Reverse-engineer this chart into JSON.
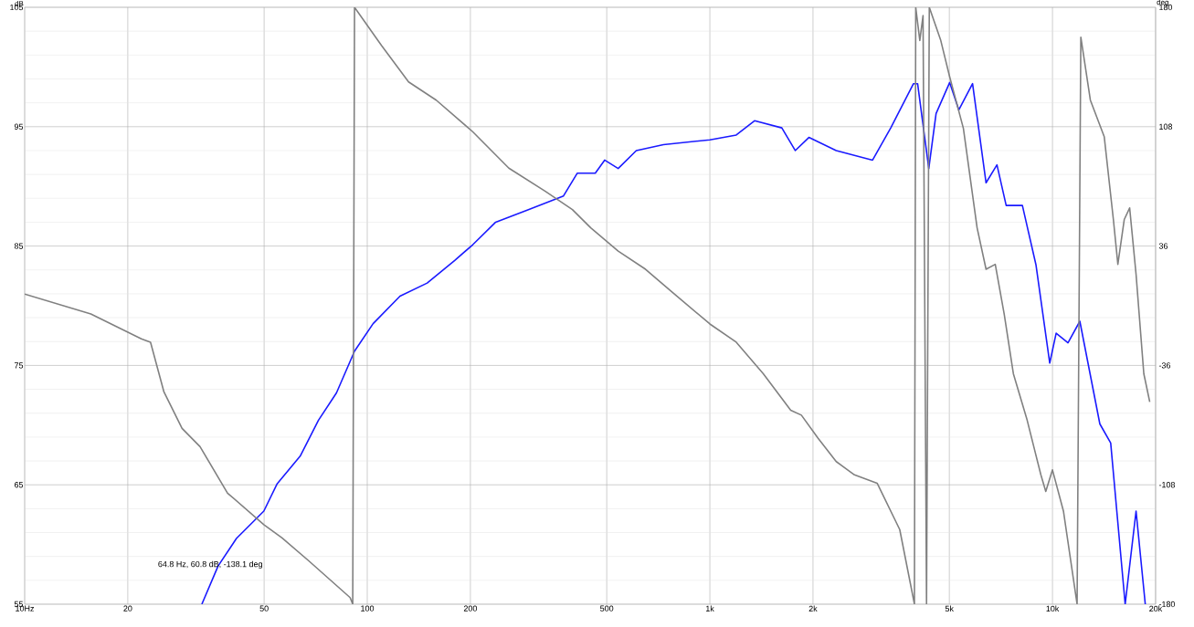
{
  "chart_data": {
    "type": "line",
    "log": "x",
    "grid": true,
    "ylabel": "dB",
    "y2label": "deg",
    "xlim": [
      10,
      20000
    ],
    "ylim": [
      55,
      105
    ],
    "y2lim": [
      -180,
      180
    ],
    "xticks": [
      {
        "value": 10,
        "label": "10Hz"
      },
      20,
      50,
      100,
      200,
      500,
      {
        "value": 1000,
        "label": "1k"
      },
      {
        "value": 2000,
        "label": "2k"
      },
      {
        "value": 5000,
        "label": "5k"
      },
      {
        "value": 10000,
        "label": "10k"
      },
      {
        "value": 20000,
        "label": "20k"
      }
    ],
    "yticks": [
      55,
      65,
      75,
      85,
      95,
      105
    ],
    "y2ticks": [
      -180,
      -108,
      -36,
      36,
      108,
      180
    ],
    "series": [
      {
        "color": "#1a1aff",
        "x": [
          32.9,
          36.7,
          41.5,
          49.9,
          54.6,
          63.7,
          72,
          81.3,
          91.8,
          104,
          124.6,
          149.6,
          180,
          203,
          237,
          293,
          374,
          410,
          463,
          493,
          540,
          610,
          732,
          1000,
          1194,
          1350,
          1622,
          1775,
          1946,
          2338,
          2985,
          3373,
          3930,
          4040,
          4355,
          4574,
          5012,
          5330,
          5845,
          6400,
          6887,
          7327,
          8170,
          8954,
          9818,
          10250,
          11100,
          12020,
          13750,
          14790,
          16300,
          17540,
          18660
        ],
        "values": [
          55,
          58.2,
          60.5,
          62.8,
          65.1,
          67.4,
          70.4,
          72.7,
          76.2,
          78.5,
          80.8,
          81.9,
          83.8,
          85.1,
          87.0,
          88.0,
          89.2,
          91.1,
          91.1,
          92.2,
          91.5,
          93.0,
          93.5,
          93.9,
          94.3,
          95.5,
          94.9,
          93.0,
          94.1,
          93.0,
          92.2,
          94.9,
          98.6,
          98.6,
          91.5,
          96.1,
          98.7,
          96.4,
          98.6,
          90.3,
          91.8,
          88.4,
          88.4,
          83.4,
          75.2,
          77.7,
          76.9,
          78.7,
          70.1,
          68.5,
          55,
          62.8,
          55
        ]
      },
      {
        "color": "#808080",
        "axis": "y2",
        "x": [
          10,
          15.6,
          21.9,
          23.3,
          25.5,
          28.8,
          32.5,
          39.1,
          49.9,
          56.4,
          67.6,
          89.1,
          90.7,
          91.8,
          110,
          132,
          159,
          203,
          259,
          331,
          397,
          449,
          540,
          649,
          778,
          1000,
          1194,
          1432,
          1722,
          1850,
          2070,
          2338,
          2643,
          3078,
          3583,
          3955,
          3990,
          4100,
          4190,
          4290,
          4370,
          4720,
          5012,
          5495,
          6026,
          6400,
          6808,
          7230,
          7690,
          8435,
          9250,
          9560,
          10000,
          10770,
          11800,
          12100,
          12900,
          14160,
          15060,
          15520,
          16200,
          16800,
          17540,
          18480,
          19230
        ],
        "values": [
          7,
          -5,
          -20,
          -22,
          -52,
          -74,
          -85,
          -113,
          -132,
          -140,
          -154,
          -176,
          -180,
          180,
          157,
          135,
          124,
          105,
          83,
          69,
          58,
          47,
          33,
          22,
          8,
          -11,
          -22,
          -41,
          -63,
          -66,
          -80,
          -94,
          -102,
          -107,
          -135,
          -180,
          180,
          160,
          175,
          -180,
          180,
          160,
          138,
          107,
          47,
          22,
          25,
          -5,
          -41,
          -69,
          -102,
          -112,
          -99,
          -124,
          -180,
          162,
          124,
          102,
          52,
          25,
          52,
          59,
          19,
          -41,
          -58
        ]
      }
    ],
    "annotations": [
      "64.8 Hz, 60.8 dB, -138.1 deg"
    ]
  }
}
